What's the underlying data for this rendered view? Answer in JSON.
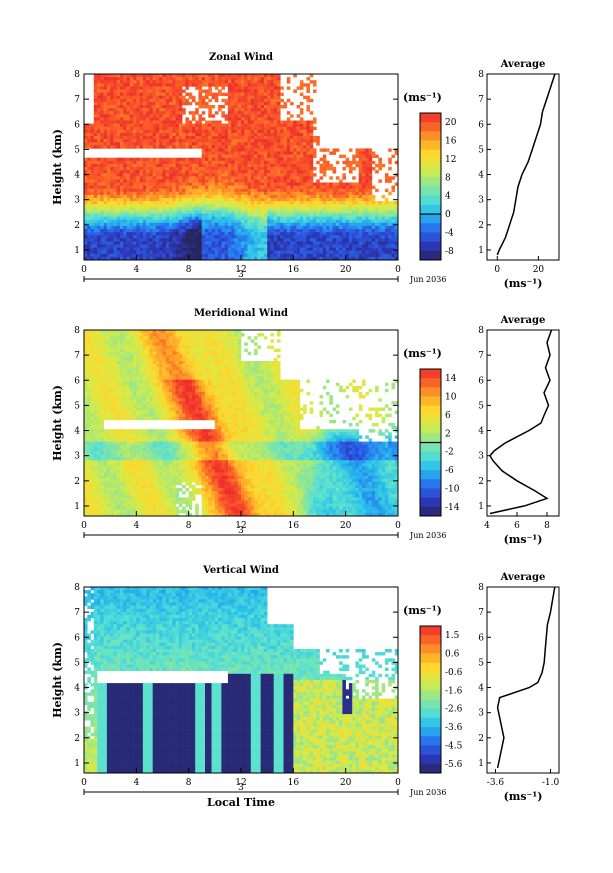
{
  "chart_data": [
    {
      "type": "heatmap",
      "title": "Zonal Wind",
      "xlabel": "",
      "ylabel": "Height (km)",
      "xlim": [
        0,
        24
      ],
      "ylim": [
        0.6,
        8
      ],
      "x_ticks": [
        "0",
        "4",
        "8",
        "12",
        "16",
        "20",
        "0"
      ],
      "y_ticks": [
        "1",
        "2",
        "3",
        "4",
        "5",
        "6",
        "7",
        "8"
      ],
      "day_label": "3",
      "date_label": "Jun 2036",
      "colorbar": {
        "unit": "(ms⁻¹)",
        "ticks": [
          "20",
          "16",
          "12",
          "8",
          "4",
          "0",
          "-4",
          "-8"
        ],
        "range": [
          -10,
          22
        ],
        "zero": 0
      },
      "average": {
        "title": "Average",
        "xlabel": "(ms⁻¹)",
        "x_ticks": [
          "0",
          "20"
        ],
        "xlim": [
          -5,
          30
        ],
        "height": [
          0.8,
          1.0,
          1.5,
          2.0,
          2.5,
          3.0,
          3.5,
          4.0,
          4.5,
          5.0,
          5.5,
          6.0,
          6.5,
          7.0,
          7.5,
          8.0
        ],
        "values": [
          0,
          1,
          4,
          6,
          8,
          9,
          10,
          12,
          15,
          17,
          19,
          21,
          22,
          24,
          26,
          28
        ]
      }
    },
    {
      "type": "heatmap",
      "title": "Meridional Wind",
      "xlabel": "",
      "ylabel": "Height (km)",
      "xlim": [
        0,
        24
      ],
      "ylim": [
        0.6,
        8
      ],
      "x_ticks": [
        "0",
        "4",
        "8",
        "12",
        "16",
        "20",
        "0"
      ],
      "y_ticks": [
        "1",
        "2",
        "3",
        "4",
        "5",
        "6",
        "7",
        "8"
      ],
      "day_label": "3",
      "date_label": "Jun 2036",
      "colorbar": {
        "unit": "(ms⁻¹)",
        "ticks": [
          "14",
          "10",
          "6",
          "2",
          "-2",
          "-6",
          "-10",
          "-14"
        ],
        "range": [
          -16,
          16
        ],
        "zero": 0
      },
      "average": {
        "title": "Average",
        "xlabel": "(ms⁻¹)",
        "x_ticks": [
          "4",
          "6",
          "8"
        ],
        "xlim": [
          4,
          8.8
        ],
        "height": [
          0.7,
          1.0,
          1.3,
          1.6,
          2.0,
          2.4,
          2.8,
          3.0,
          3.2,
          3.5,
          4.0,
          4.3,
          4.6,
          5.0,
          5.5,
          6.0,
          6.5,
          7.0,
          7.5,
          8.0
        ],
        "values": [
          4.2,
          6.5,
          8.0,
          7.2,
          6.0,
          5.0,
          4.4,
          4.2,
          4.5,
          5.2,
          6.8,
          7.6,
          7.8,
          8.1,
          7.8,
          8.2,
          7.9,
          8.2,
          8.0,
          8.3
        ]
      }
    },
    {
      "type": "heatmap",
      "title": "Vertical Wind",
      "xlabel": "Local Time",
      "ylabel": "Height (km)",
      "xlim": [
        0,
        24
      ],
      "ylim": [
        0.6,
        8
      ],
      "x_ticks": [
        "0",
        "4",
        "8",
        "12",
        "16",
        "20",
        "0"
      ],
      "y_ticks": [
        "1",
        "2",
        "3",
        "4",
        "5",
        "6",
        "7",
        "8"
      ],
      "day_label": "3",
      "date_label": "Jun 2036",
      "colorbar": {
        "unit": "(ms⁻¹)",
        "ticks": [
          "1.5",
          "0.6",
          "-0.6",
          "-1.6",
          "-2.6",
          "-3.6",
          "-4.5",
          "-5.6"
        ],
        "range": [
          -6,
          2
        ]
      },
      "average": {
        "title": "Average",
        "xlabel": "(ms⁻¹)",
        "x_ticks": [
          "-3.6",
          "-1.0"
        ],
        "xlim": [
          -4,
          -0.6
        ],
        "height": [
          0.8,
          1.2,
          1.6,
          2.0,
          2.4,
          2.8,
          3.2,
          3.6,
          4.0,
          4.2,
          4.6,
          5.0,
          5.5,
          6.0,
          6.5,
          7.0,
          7.5,
          8.0
        ],
        "values": [
          -3.5,
          -3.4,
          -3.3,
          -3.2,
          -3.3,
          -3.4,
          -3.5,
          -3.4,
          -2.0,
          -1.6,
          -1.4,
          -1.3,
          -1.25,
          -1.2,
          -1.15,
          -1.0,
          -0.9,
          -0.8
        ]
      }
    }
  ]
}
